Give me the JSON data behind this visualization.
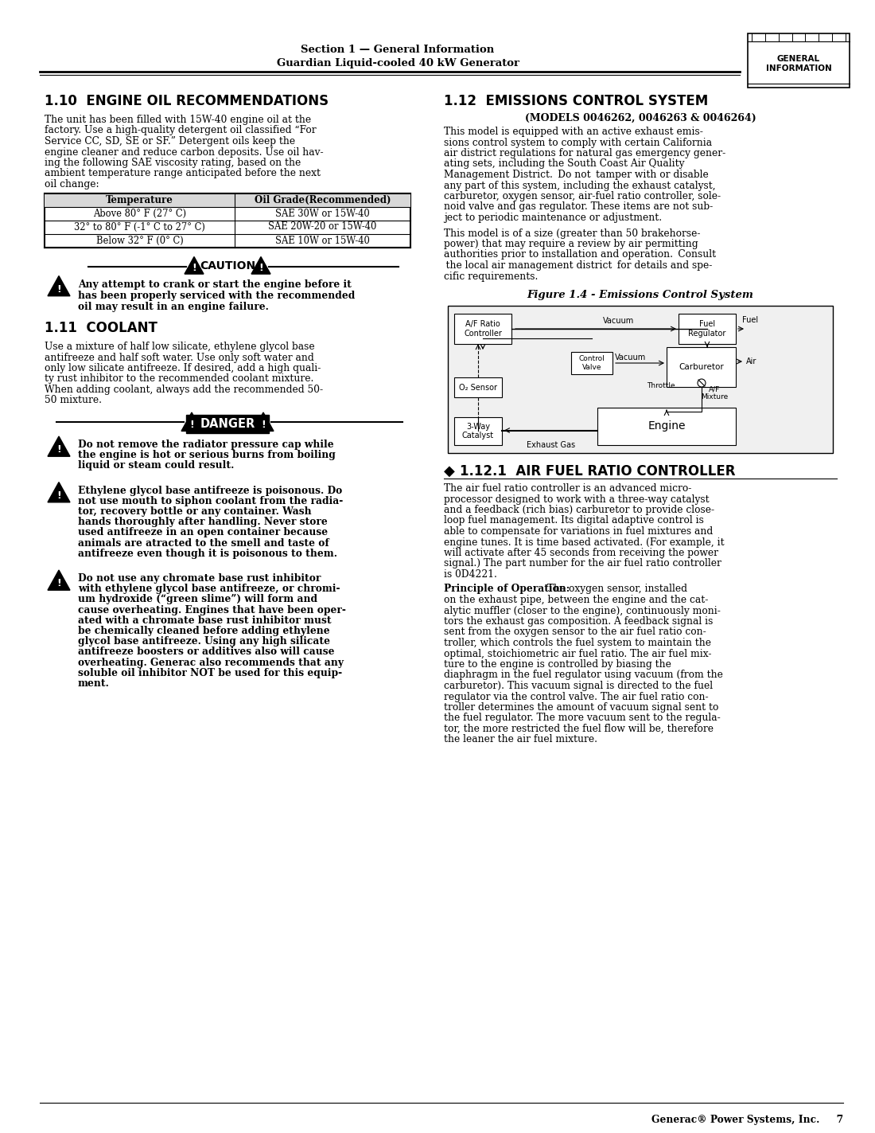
{
  "page_width": 10.8,
  "page_height": 13.97,
  "bg_color": "#ffffff",
  "header": {
    "section_text": "Section 1 — General Information",
    "subtitle_text": "Guardian Liquid-cooled 40 kW Generator",
    "tab_text": "GENERAL\nINFORMATION"
  },
  "left_col": {
    "section_title": "1.10  ENGINE OIL RECOMMENDATIONS",
    "section_body": "The unit has been filled with 15W-40 engine oil at the\nfactory. Use a high-quality detergent oil classified “For\nService CC, SD, SE or SF.” Detergent oils keep the\nengine cleaner and reduce carbon deposits. Use oil hav-\ning the following SAE viscosity rating, based on the\nambient temperature range anticipated before the next\noil change:",
    "table_headers": [
      "Temperature",
      "Oil Grade(Recommended)"
    ],
    "table_rows": [
      [
        "Above 80° F (27° C)",
        "SAE 30W or 15W-40"
      ],
      [
        "32° to 80° F (-1° C to 27° C)",
        "SAE 20W-20 or 15W-40"
      ],
      [
        "Below 32° F (0° C)",
        "SAE 10W or 15W-40"
      ]
    ],
    "caution_text": "Any attempt to crank or start the engine before it\nhas been properly serviced with the recommended\noil may result in an engine failure.",
    "section2_title": "1.11  COOLANT",
    "section2_body": "Use a mixture of half low silicate, ethylene glycol base\nantifreeze and half soft water. Use only soft water and\nonly low silicate antifreeze. If desired, add a high quali-\nty rust inhibitor to the recommended coolant mixture.\nWhen adding coolant, always add the recommended 50-\n50 mixture.",
    "danger_items": [
      "Do not remove the radiator pressure cap while\nthe engine is hot or serious burns from boiling\nliquid or steam could result.",
      "Ethylene glycol base antifreeze is poisonous. Do\nnot use mouth to siphon coolant from the radia-\ntor, recovery bottle or any container. Wash\nhands thoroughly after handling. Never store\nused antifreeze in an open container because\nanimals are atracted to the smell and taste of\nantifreeze even though it is poisonous to them.",
      "Do not use any chromate base rust inhibitor\nwith ethylene glycol base antifreeze, or chromi-\num hydroxide (“green slime”) will form and\ncause overheating. Engines that have been oper-\nated with a chromate base rust inhibitor must\nbe chemically cleaned before adding ethylene\nglycol base antifreeze. Using any high silicate\nantifreeze boosters or additives also will cause\noverheating. Generac also recommends that any\nsoluble oil inhibitor NOT be used for this equip-\nment."
    ]
  },
  "right_col": {
    "section_title": "1.12  EMISSIONS CONTROL SYSTEM",
    "section_subtitle": "(MODELS 0046262, 0046263 & 0046264)",
    "section_body1_lines": [
      "This model is equipped with an active exhaust emis-",
      "sions control system to comply with certain California",
      "air district regulations for natural gas emergency gener-",
      "ating sets, including the South Coast Air Quality",
      "Management District.  Do not  tamper with or disable",
      "any part of this system, including the exhaust catalyst,",
      "carburetor, oxygen sensor, air-fuel ratio controller, sole-",
      "noid valve and gas regulator. These items are not sub-",
      "ject to periodic maintenance or adjustment."
    ],
    "section_body2_lines": [
      "This model is of a size (greater than 50 brakehorse-",
      "power) that may require a review by air permitting",
      "authorities prior to installation and operation.  Consult",
      " the local air management district  for details and spe-",
      "cific requirements."
    ],
    "figure_caption": "Figure 1.4 - Emissions Control System",
    "subsection_title": "1.12.1  AIR FUEL RATIO CONTROLLER",
    "sub_body1_lines": [
      "The air fuel ratio controller is an advanced micro-",
      "processor designed to work with a three-way catalyst",
      "and a feedback (rich bias) carburetor to provide close-",
      "loop fuel management. Its digital adaptive control is",
      "able to compensate for variations in fuel mixtures and",
      "engine tunes. It is time based activated. (For example, it",
      "will activate after 45 seconds from receiving the power",
      "signal.) The part number for the air fuel ratio controller",
      "is 0D4221."
    ],
    "sub_body2_lines": [
      "  The oxygen sensor, installed",
      "on the exhaust pipe, between the engine and the cat-",
      "alytic muffler (closer to the engine), continuously moni-",
      "tors the exhaust gas composition. A feedback signal is",
      "sent from the oxygen sensor to the air fuel ratio con-",
      "troller, which controls the fuel system to maintain the",
      "optimal, stoichiometric air fuel ratio. The air fuel mix-",
      "ture to the engine is controlled by biasing the",
      "diaphragm in the fuel regulator using vacuum (from the",
      "carburetor). This vacuum signal is directed to the fuel",
      "regulator via the control valve. The air fuel ratio con-",
      "troller determines the amount of vacuum signal sent to",
      "the fuel regulator. The more vacuum sent to the regula-",
      "tor, the more restricted the fuel flow will be, therefore",
      "the leaner the air fuel mixture."
    ],
    "sub_body2_bold": "Principle of Operation:"
  },
  "footer_text": "Generac® Power Systems, Inc.     7"
}
